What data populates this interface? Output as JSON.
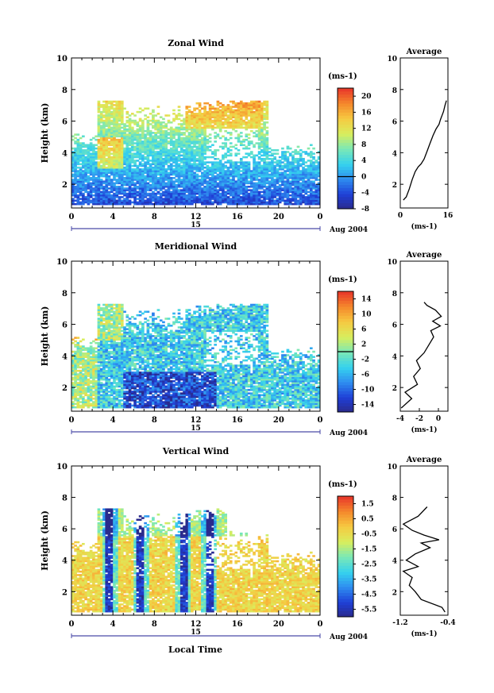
{
  "page": {
    "date_label": "Aug 2004",
    "xlabel_bottom": "Local Time",
    "date_tick_label": "15"
  },
  "chart_data": [
    {
      "type": "heatmap",
      "title": "Zonal Wind",
      "xlabel": "",
      "ylabel": "Height (km)",
      "xlim": [
        0,
        24
      ],
      "ylim": [
        0.5,
        10
      ],
      "x_ticks": [
        "0",
        "4",
        "8",
        "12",
        "16",
        "20",
        "0"
      ],
      "y_ticks": [
        2,
        4,
        6,
        8,
        10
      ],
      "colorbar": {
        "unit": "(ms-1)",
        "min": -8,
        "max": 22,
        "ticks": [
          -8,
          -4,
          0,
          4,
          8,
          12,
          16,
          20
        ],
        "zero_line": 0
      },
      "average_profile": {
        "title": "Average",
        "xlabel": "(ms-1)",
        "xlim": [
          0,
          16
        ],
        "x_ticks": [
          0,
          16
        ],
        "ylim": [
          0.5,
          10
        ],
        "y_ticks": [
          2,
          4,
          6,
          8,
          10
        ],
        "points": [
          [
            1.0,
            1.0
          ],
          [
            2.0,
            1.2
          ],
          [
            3.0,
            1.7
          ],
          [
            4.0,
            2.3
          ],
          [
            5.0,
            2.8
          ],
          [
            6.0,
            3.1
          ],
          [
            7.0,
            3.3
          ],
          [
            8.0,
            3.6
          ],
          [
            9.0,
            4.1
          ],
          [
            10.0,
            4.6
          ],
          [
            11.0,
            5.1
          ],
          [
            12.0,
            5.5
          ],
          [
            13.0,
            5.8
          ],
          [
            13.5,
            6.1
          ],
          [
            14.5,
            6.6
          ],
          [
            15.0,
            7.0
          ],
          [
            15.5,
            7.3
          ]
        ]
      }
    },
    {
      "type": "heatmap",
      "title": "Meridional Wind",
      "xlabel": "",
      "ylabel": "Height (km)",
      "xlim": [
        0,
        24
      ],
      "ylim": [
        0.5,
        10
      ],
      "x_ticks": [
        "0",
        "4",
        "8",
        "12",
        "16",
        "20",
        "0"
      ],
      "y_ticks": [
        2,
        4,
        6,
        8,
        10
      ],
      "colorbar": {
        "unit": "(ms-1)",
        "min": -16,
        "max": 16,
        "ticks": [
          -14,
          -10,
          -6,
          -2,
          2,
          6,
          10,
          14
        ],
        "zero_line": 0
      },
      "average_profile": {
        "title": "Average",
        "xlabel": "(ms-1)",
        "xlim": [
          -4,
          1
        ],
        "x_ticks": [
          -4,
          -2,
          0
        ],
        "ylim": [
          0.5,
          10
        ],
        "y_ticks": [
          2,
          4,
          6,
          8,
          10
        ],
        "points": [
          [
            -3.9,
            0.7
          ],
          [
            -2.8,
            1.3
          ],
          [
            -3.5,
            1.7
          ],
          [
            -2.2,
            2.2
          ],
          [
            -2.6,
            2.7
          ],
          [
            -1.9,
            3.2
          ],
          [
            -2.3,
            3.7
          ],
          [
            -1.5,
            4.2
          ],
          [
            -1.0,
            4.7
          ],
          [
            -0.5,
            5.2
          ],
          [
            -0.8,
            5.6
          ],
          [
            0.2,
            5.9
          ],
          [
            -0.6,
            6.2
          ],
          [
            0.3,
            6.5
          ],
          [
            -0.3,
            6.9
          ],
          [
            -1.2,
            7.2
          ],
          [
            -1.5,
            7.4
          ]
        ]
      }
    },
    {
      "type": "heatmap",
      "title": "Vertical Wind",
      "xlabel": "Local Time",
      "ylabel": "Height (km)",
      "xlim": [
        0,
        24
      ],
      "ylim": [
        0.5,
        10
      ],
      "x_ticks": [
        "0",
        "4",
        "8",
        "12",
        "16",
        "20",
        "0"
      ],
      "y_ticks": [
        2,
        4,
        6,
        8,
        10
      ],
      "colorbar": {
        "unit": "(ms-1)",
        "min": -6.0,
        "max": 2.0,
        "ticks": [
          -5.5,
          -4.5,
          -3.5,
          -2.5,
          -1.5,
          -0.5,
          0.5,
          1.5
        ]
      },
      "average_profile": {
        "title": "Average",
        "xlabel": "(ms-1)",
        "xlim": [
          -1.2,
          -0.4
        ],
        "x_ticks": [
          -1.2,
          -0.4
        ],
        "ylim": [
          0.5,
          10
        ],
        "y_ticks": [
          2,
          4,
          6,
          8,
          10
        ],
        "points": [
          [
            -0.45,
            0.7
          ],
          [
            -0.5,
            1.0
          ],
          [
            -0.85,
            1.5
          ],
          [
            -0.95,
            2.0
          ],
          [
            -1.05,
            2.4
          ],
          [
            -1.0,
            2.9
          ],
          [
            -1.15,
            3.3
          ],
          [
            -0.9,
            3.6
          ],
          [
            -1.1,
            4.0
          ],
          [
            -0.95,
            4.4
          ],
          [
            -0.7,
            4.8
          ],
          [
            -0.85,
            5.1
          ],
          [
            -0.55,
            5.3
          ],
          [
            -0.8,
            5.6
          ],
          [
            -1.0,
            5.9
          ],
          [
            -1.15,
            6.3
          ],
          [
            -0.9,
            6.8
          ],
          [
            -0.75,
            7.4
          ]
        ]
      }
    }
  ]
}
